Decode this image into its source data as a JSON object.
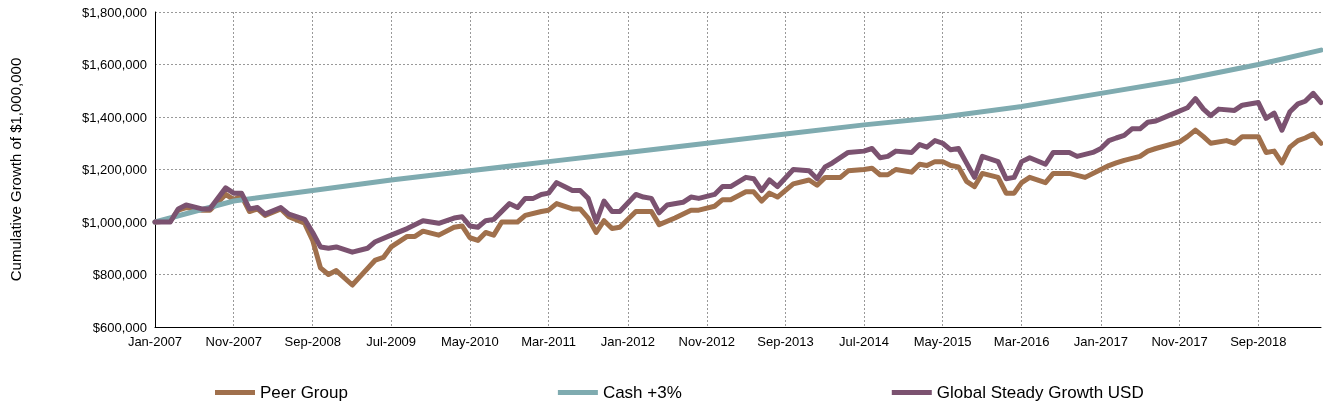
{
  "chart_data": {
    "type": "line",
    "ylabel": "Cumulative Growth of $1,000,000",
    "xlim": [
      "2007-01",
      "2019-05"
    ],
    "xticks": [
      {
        "value": "2007-01",
        "label": "Jan-2007"
      },
      {
        "value": "2007-11",
        "label": "Nov-2007"
      },
      {
        "value": "2008-09",
        "label": "Sep-2008"
      },
      {
        "value": "2009-07",
        "label": "Jul-2009"
      },
      {
        "value": "2010-05",
        "label": "May-2010"
      },
      {
        "value": "2011-03",
        "label": "Mar-2011"
      },
      {
        "value": "2012-01",
        "label": "Jan-2012"
      },
      {
        "value": "2012-11",
        "label": "Nov-2012"
      },
      {
        "value": "2013-09",
        "label": "Sep-2013"
      },
      {
        "value": "2014-07",
        "label": "Jul-2014"
      },
      {
        "value": "2015-05",
        "label": "May-2015"
      },
      {
        "value": "2016-03",
        "label": "Mar-2016"
      },
      {
        "value": "2017-01",
        "label": "Jan-2017"
      },
      {
        "value": "2017-11",
        "label": "Nov-2017"
      },
      {
        "value": "2018-09",
        "label": "Sep-2018"
      }
    ],
    "ylim": [
      600000,
      1800000
    ],
    "yticks": [
      {
        "value": 600000,
        "label": "$600,000"
      },
      {
        "value": 800000,
        "label": "$800,000"
      },
      {
        "value": 1000000,
        "label": "$1,000,000"
      },
      {
        "value": 1200000,
        "label": "$1,200,000"
      },
      {
        "value": 1400000,
        "label": "$1,400,000"
      },
      {
        "value": 1600000,
        "label": "$1,600,000"
      },
      {
        "value": 1800000,
        "label": "$1,800,000"
      }
    ],
    "grid": true,
    "legend": "bottom",
    "marker": "none",
    "line_style": "solid",
    "series": [
      {
        "name": "Peer Group",
        "color": "#a0704c",
        "x": [
          "2007-01",
          "2007-03",
          "2007-04",
          "2007-05",
          "2007-07",
          "2007-08",
          "2007-10",
          "2007-11",
          "2007-12",
          "2008-01",
          "2008-02",
          "2008-03",
          "2008-05",
          "2008-06",
          "2008-08",
          "2008-09",
          "2008-10",
          "2008-11",
          "2008-12",
          "2009-02",
          "2009-03",
          "2009-05",
          "2009-06",
          "2009-07",
          "2009-09",
          "2009-10",
          "2009-11",
          "2010-01",
          "2010-03",
          "2010-04",
          "2010-05",
          "2010-06",
          "2010-07",
          "2010-08",
          "2010-09",
          "2010-11",
          "2010-12",
          "2011-02",
          "2011-03",
          "2011-04",
          "2011-06",
          "2011-07",
          "2011-08",
          "2011-09",
          "2011-10",
          "2011-11",
          "2011-12",
          "2012-02",
          "2012-04",
          "2012-05",
          "2012-07",
          "2012-09",
          "2012-10",
          "2012-12",
          "2013-01",
          "2013-02",
          "2013-04",
          "2013-05",
          "2013-06",
          "2013-07",
          "2013-08",
          "2013-10",
          "2013-12",
          "2014-01",
          "2014-02",
          "2014-04",
          "2014-05",
          "2014-07",
          "2014-08",
          "2014-09",
          "2014-10",
          "2014-11",
          "2015-01",
          "2015-02",
          "2015-03",
          "2015-04",
          "2015-05",
          "2015-06",
          "2015-07",
          "2015-08",
          "2015-09",
          "2015-10",
          "2015-12",
          "2016-01",
          "2016-02",
          "2016-03",
          "2016-04",
          "2016-06",
          "2016-07",
          "2016-09",
          "2016-11",
          "2017-01",
          "2017-02",
          "2017-03",
          "2017-04",
          "2017-06",
          "2017-07",
          "2017-08",
          "2017-11",
          "2017-12",
          "2018-01",
          "2018-02",
          "2018-03",
          "2018-05",
          "2018-06",
          "2018-07",
          "2018-09",
          "2018-10",
          "2018-11",
          "2018-12",
          "2019-01",
          "2019-02",
          "2019-03",
          "2019-04",
          "2019-05"
        ],
        "values": [
          1000000,
          1005000,
          1045000,
          1055000,
          1045000,
          1045000,
          1105000,
          1085000,
          1100000,
          1040000,
          1050000,
          1025000,
          1050000,
          1020000,
          995000,
          930000,
          825000,
          800000,
          815000,
          760000,
          790000,
          855000,
          865000,
          905000,
          945000,
          945000,
          965000,
          950000,
          980000,
          985000,
          940000,
          930000,
          960000,
          950000,
          1000000,
          1000000,
          1025000,
          1040000,
          1045000,
          1070000,
          1050000,
          1050000,
          1015000,
          960000,
          1005000,
          975000,
          980000,
          1040000,
          1040000,
          990000,
          1015000,
          1045000,
          1045000,
          1060000,
          1085000,
          1085000,
          1115000,
          1115000,
          1080000,
          1110000,
          1095000,
          1145000,
          1160000,
          1140000,
          1170000,
          1170000,
          1195000,
          1200000,
          1205000,
          1180000,
          1180000,
          1200000,
          1190000,
          1220000,
          1215000,
          1230000,
          1230000,
          1215000,
          1210000,
          1155000,
          1135000,
          1185000,
          1170000,
          1110000,
          1110000,
          1150000,
          1170000,
          1150000,
          1185000,
          1185000,
          1170000,
          1200000,
          1215000,
          1225000,
          1235000,
          1250000,
          1270000,
          1280000,
          1305000,
          1325000,
          1350000,
          1325000,
          1300000,
          1310000,
          1300000,
          1325000,
          1325000,
          1265000,
          1270000,
          1225000,
          1285000,
          1310000,
          1320000,
          1335000,
          1300000
        ]
      },
      {
        "name": "Cash +3%",
        "color": "#7fabb0",
        "x": [
          "2007-01",
          "2007-11",
          "2008-09",
          "2009-07",
          "2010-05",
          "2011-03",
          "2012-01",
          "2012-11",
          "2013-09",
          "2014-07",
          "2015-05",
          "2016-03",
          "2017-01",
          "2017-11",
          "2018-09",
          "2019-05"
        ],
        "values": [
          1000000,
          1080000,
          1120000,
          1160000,
          1195000,
          1230000,
          1265000,
          1300000,
          1335000,
          1370000,
          1400000,
          1440000,
          1490000,
          1540000,
          1600000,
          1655000
        ]
      },
      {
        "name": "Global Steady Growth USD",
        "color": "#7b5270",
        "x": [
          "2007-01",
          "2007-03",
          "2007-04",
          "2007-05",
          "2007-07",
          "2007-08",
          "2007-10",
          "2007-11",
          "2007-12",
          "2008-01",
          "2008-02",
          "2008-03",
          "2008-05",
          "2008-06",
          "2008-08",
          "2008-09",
          "2008-10",
          "2008-11",
          "2008-12",
          "2009-02",
          "2009-04",
          "2009-05",
          "2009-07",
          "2009-09",
          "2009-11",
          "2010-01",
          "2010-03",
          "2010-04",
          "2010-05",
          "2010-06",
          "2010-07",
          "2010-08",
          "2010-10",
          "2010-11",
          "2010-12",
          "2011-01",
          "2011-02",
          "2011-03",
          "2011-04",
          "2011-05",
          "2011-06",
          "2011-07",
          "2011-08",
          "2011-09",
          "2011-10",
          "2011-11",
          "2011-12",
          "2012-02",
          "2012-03",
          "2012-04",
          "2012-05",
          "2012-06",
          "2012-08",
          "2012-09",
          "2012-10",
          "2012-12",
          "2013-01",
          "2013-02",
          "2013-04",
          "2013-05",
          "2013-06",
          "2013-07",
          "2013-08",
          "2013-10",
          "2013-12",
          "2014-01",
          "2014-02",
          "2014-03",
          "2014-05",
          "2014-07",
          "2014-08",
          "2014-09",
          "2014-10",
          "2014-11",
          "2015-01",
          "2015-02",
          "2015-03",
          "2015-04",
          "2015-05",
          "2015-06",
          "2015-07",
          "2015-09",
          "2015-10",
          "2015-12",
          "2016-01",
          "2016-02",
          "2016-03",
          "2016-04",
          "2016-06",
          "2016-07",
          "2016-09",
          "2016-10",
          "2016-12",
          "2017-01",
          "2017-02",
          "2017-03",
          "2017-04",
          "2017-05",
          "2017-06",
          "2017-07",
          "2017-08",
          "2017-10",
          "2017-12",
          "2018-01",
          "2018-02",
          "2018-03",
          "2018-04",
          "2018-06",
          "2018-07",
          "2018-09",
          "2018-10",
          "2018-11",
          "2018-12",
          "2019-01",
          "2019-02",
          "2019-03",
          "2019-04",
          "2019-05"
        ],
        "values": [
          1000000,
          1000000,
          1050000,
          1065000,
          1050000,
          1050000,
          1130000,
          1110000,
          1110000,
          1050000,
          1055000,
          1030000,
          1055000,
          1030000,
          1010000,
          960000,
          905000,
          900000,
          905000,
          885000,
          900000,
          925000,
          950000,
          975000,
          1005000,
          995000,
          1015000,
          1020000,
          985000,
          980000,
          1005000,
          1010000,
          1070000,
          1055000,
          1090000,
          1090000,
          1105000,
          1110000,
          1150000,
          1135000,
          1120000,
          1120000,
          1090000,
          1000000,
          1080000,
          1040000,
          1040000,
          1105000,
          1095000,
          1090000,
          1035000,
          1065000,
          1075000,
          1095000,
          1090000,
          1105000,
          1135000,
          1135000,
          1170000,
          1165000,
          1120000,
          1160000,
          1135000,
          1200000,
          1195000,
          1165000,
          1210000,
          1225000,
          1265000,
          1270000,
          1280000,
          1245000,
          1250000,
          1270000,
          1265000,
          1295000,
          1285000,
          1310000,
          1300000,
          1275000,
          1280000,
          1170000,
          1250000,
          1230000,
          1165000,
          1170000,
          1230000,
          1245000,
          1220000,
          1265000,
          1265000,
          1250000,
          1265000,
          1280000,
          1310000,
          1320000,
          1330000,
          1355000,
          1355000,
          1380000,
          1385000,
          1410000,
          1435000,
          1470000,
          1430000,
          1405000,
          1430000,
          1425000,
          1445000,
          1455000,
          1395000,
          1415000,
          1350000,
          1420000,
          1450000,
          1460000,
          1490000,
          1455000
        ]
      }
    ]
  }
}
